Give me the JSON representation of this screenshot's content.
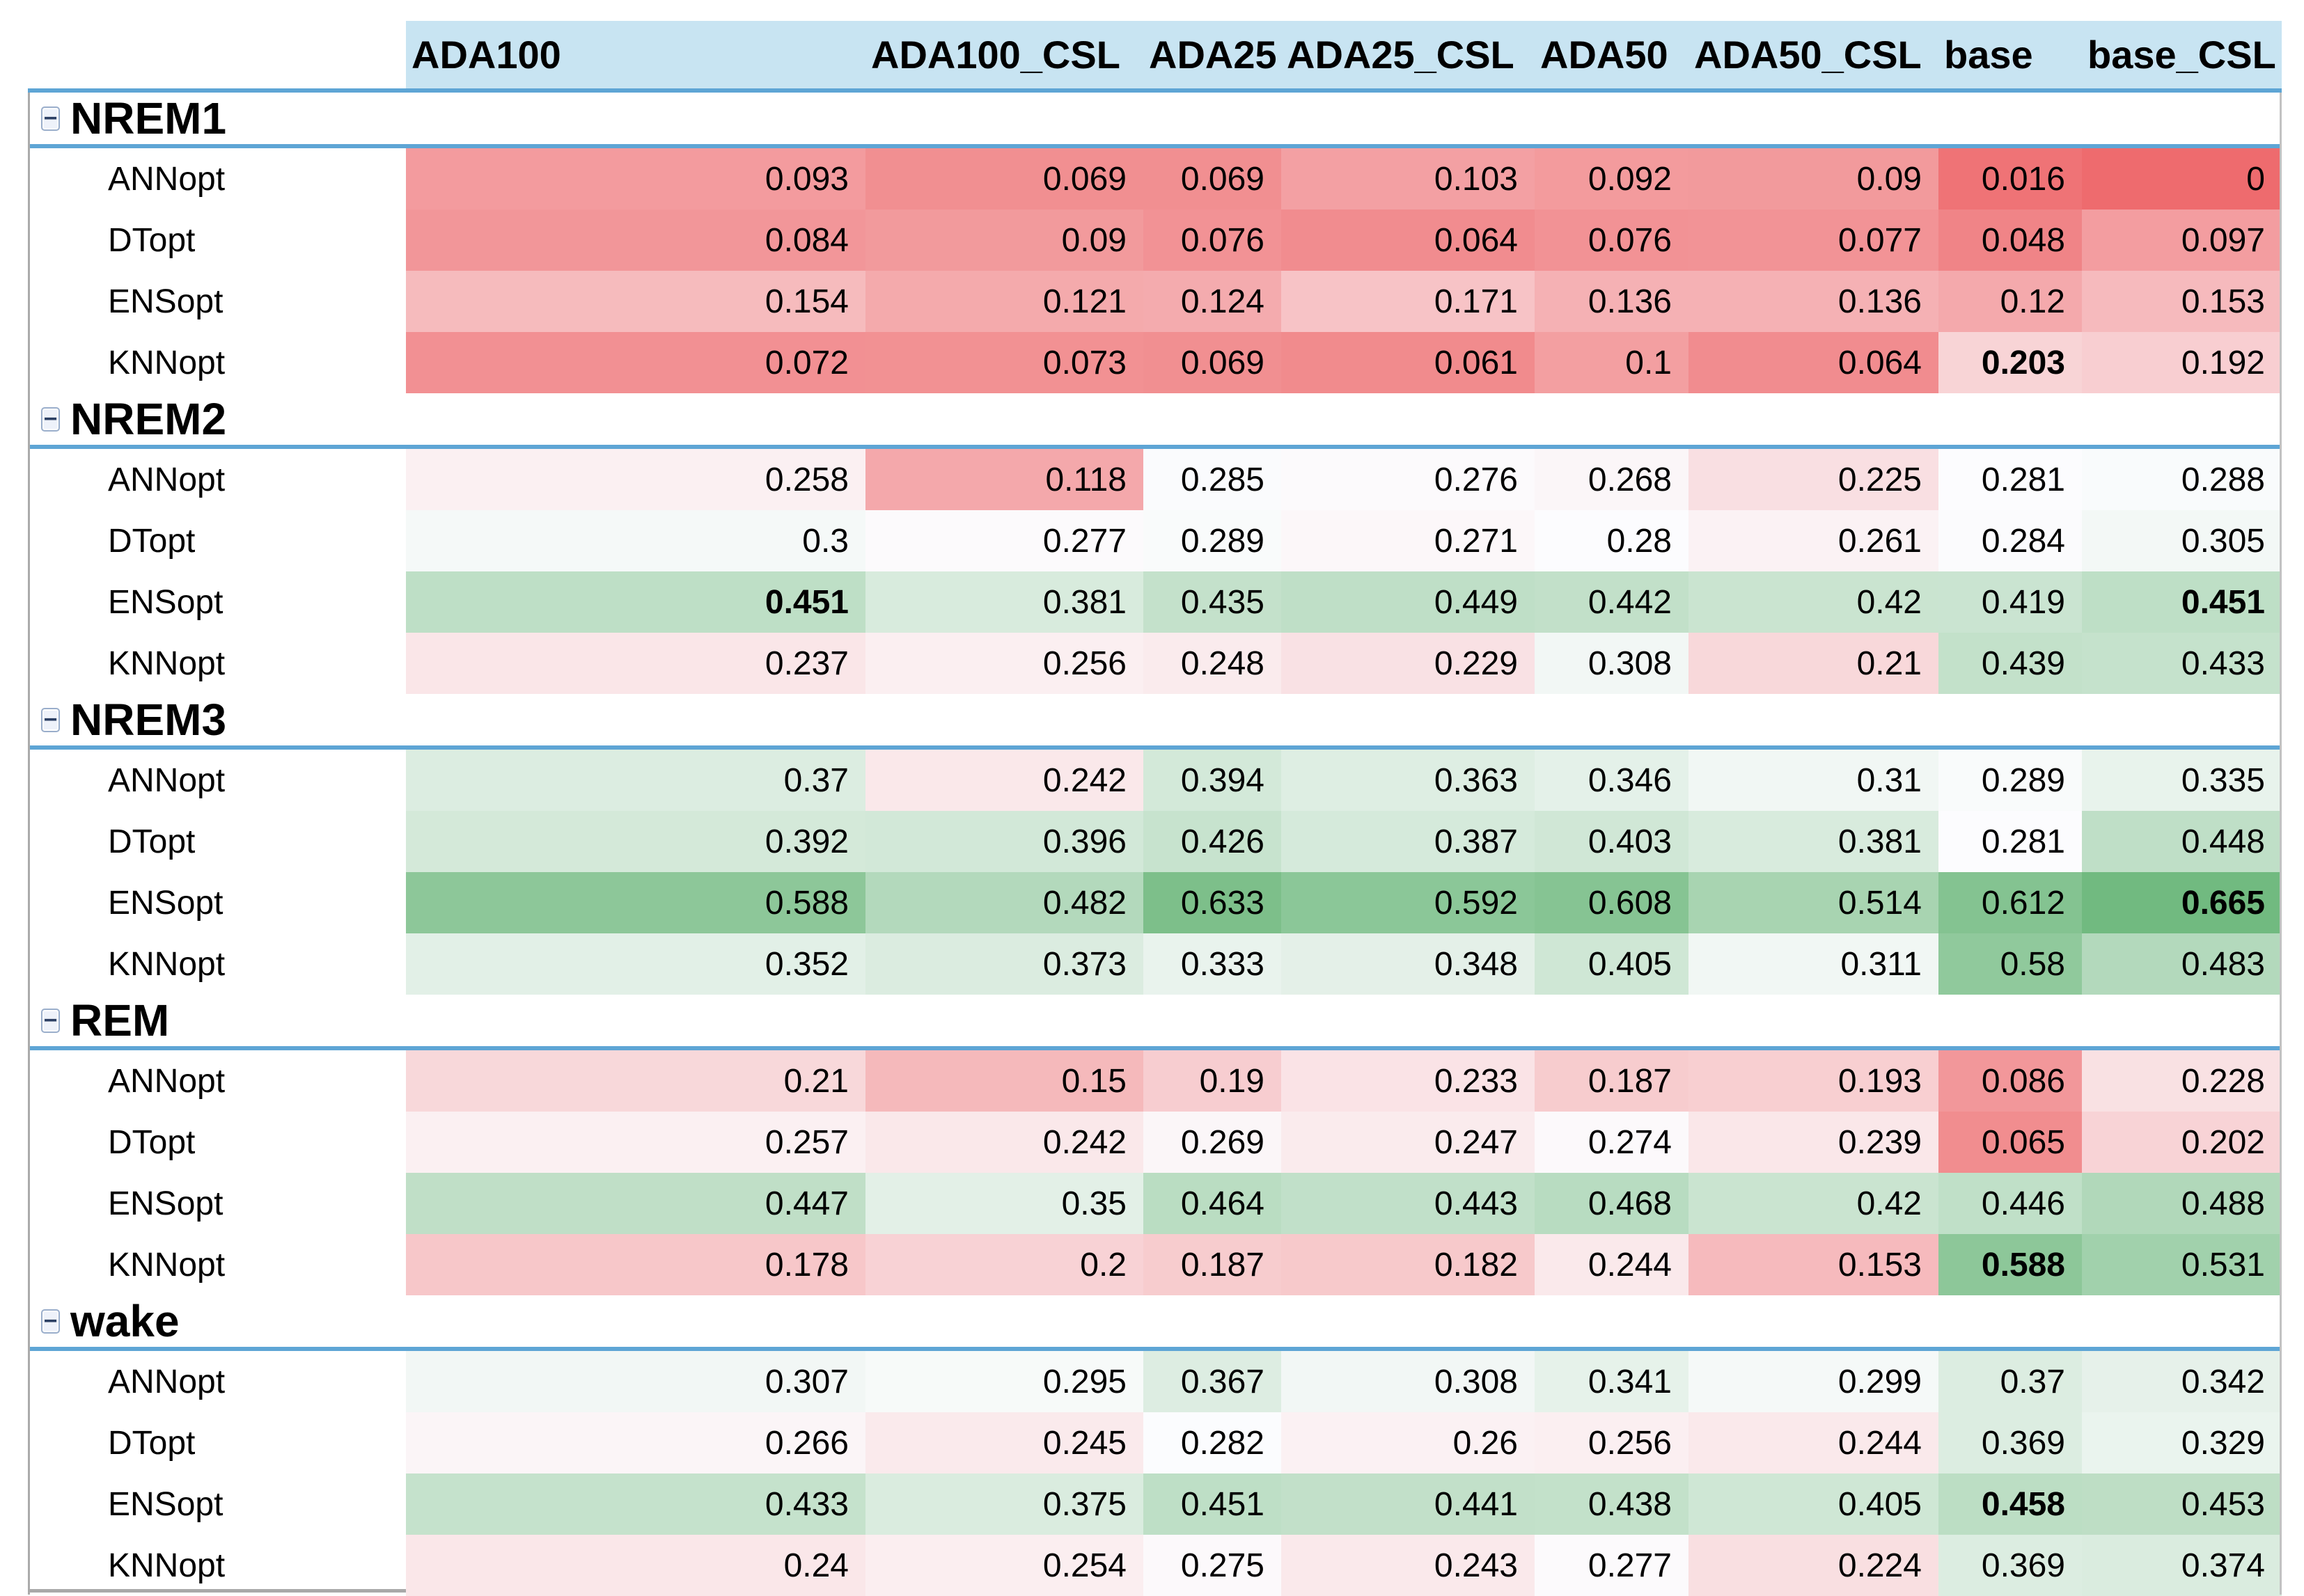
{
  "table": {
    "columns": [
      "ADA100",
      "ADA100_CSL",
      "ADA25",
      "ADA25_CSL",
      "ADA50",
      "ADA50_CSL",
      "base",
      "base_CSL"
    ],
    "groups": [
      {
        "label": "NREM1",
        "rows": [
          {
            "label": "ANNopt",
            "values": [
              "0.093",
              "0.069",
              "0.069",
              "0.103",
              "0.092",
              "0.09",
              "0.016",
              "0"
            ],
            "bold": []
          },
          {
            "label": "DTopt",
            "values": [
              "0.084",
              "0.09",
              "0.076",
              "0.064",
              "0.076",
              "0.077",
              "0.048",
              "0.097"
            ],
            "bold": []
          },
          {
            "label": "ENSopt",
            "values": [
              "0.154",
              "0.121",
              "0.124",
              "0.171",
              "0.136",
              "0.136",
              "0.12",
              "0.153"
            ],
            "bold": []
          },
          {
            "label": "KNNopt",
            "values": [
              "0.072",
              "0.073",
              "0.069",
              "0.061",
              "0.1",
              "0.064",
              "0.203",
              "0.192"
            ],
            "bold": [
              6
            ]
          }
        ]
      },
      {
        "label": "NREM2",
        "rows": [
          {
            "label": "ANNopt",
            "values": [
              "0.258",
              "0.118",
              "0.285",
              "0.276",
              "0.268",
              "0.225",
              "0.281",
              "0.288"
            ],
            "bold": []
          },
          {
            "label": "DTopt",
            "values": [
              "0.3",
              "0.277",
              "0.289",
              "0.271",
              "0.28",
              "0.261",
              "0.284",
              "0.305"
            ],
            "bold": []
          },
          {
            "label": "ENSopt",
            "values": [
              "0.451",
              "0.381",
              "0.435",
              "0.449",
              "0.442",
              "0.42",
              "0.419",
              "0.451"
            ],
            "bold": [
              0,
              7
            ]
          },
          {
            "label": "KNNopt",
            "values": [
              "0.237",
              "0.256",
              "0.248",
              "0.229",
              "0.308",
              "0.21",
              "0.439",
              "0.433"
            ],
            "bold": []
          }
        ]
      },
      {
        "label": "NREM3",
        "rows": [
          {
            "label": "ANNopt",
            "values": [
              "0.37",
              "0.242",
              "0.394",
              "0.363",
              "0.346",
              "0.31",
              "0.289",
              "0.335"
            ],
            "bold": []
          },
          {
            "label": "DTopt",
            "values": [
              "0.392",
              "0.396",
              "0.426",
              "0.387",
              "0.403",
              "0.381",
              "0.281",
              "0.448"
            ],
            "bold": []
          },
          {
            "label": "ENSopt",
            "values": [
              "0.588",
              "0.482",
              "0.633",
              "0.592",
              "0.608",
              "0.514",
              "0.612",
              "0.665"
            ],
            "bold": [
              7
            ]
          },
          {
            "label": "KNNopt",
            "values": [
              "0.352",
              "0.373",
              "0.333",
              "0.348",
              "0.405",
              "0.311",
              "0.58",
              "0.483"
            ],
            "bold": []
          }
        ]
      },
      {
        "label": "REM",
        "rows": [
          {
            "label": "ANNopt",
            "values": [
              "0.21",
              "0.15",
              "0.19",
              "0.233",
              "0.187",
              "0.193",
              "0.086",
              "0.228"
            ],
            "bold": []
          },
          {
            "label": "DTopt",
            "values": [
              "0.257",
              "0.242",
              "0.269",
              "0.247",
              "0.274",
              "0.239",
              "0.065",
              "0.202"
            ],
            "bold": []
          },
          {
            "label": "ENSopt",
            "values": [
              "0.447",
              "0.35",
              "0.464",
              "0.443",
              "0.468",
              "0.42",
              "0.446",
              "0.488"
            ],
            "bold": []
          },
          {
            "label": "KNNopt",
            "values": [
              "0.178",
              "0.2",
              "0.187",
              "0.182",
              "0.244",
              "0.153",
              "0.588",
              "0.531"
            ],
            "bold": [
              6
            ]
          }
        ]
      },
      {
        "label": "wake",
        "rows": [
          {
            "label": "ANNopt",
            "values": [
              "0.307",
              "0.295",
              "0.367",
              "0.308",
              "0.341",
              "0.299",
              "0.37",
              "0.342"
            ],
            "bold": []
          },
          {
            "label": "DTopt",
            "values": [
              "0.266",
              "0.245",
              "0.282",
              "0.26",
              "0.256",
              "0.244",
              "0.369",
              "0.329"
            ],
            "bold": []
          },
          {
            "label": "ENSopt",
            "values": [
              "0.433",
              "0.375",
              "0.451",
              "0.441",
              "0.438",
              "0.405",
              "0.458",
              "0.453"
            ],
            "bold": [
              6
            ]
          },
          {
            "label": "KNNopt",
            "values": [
              "0.24",
              "0.254",
              "0.275",
              "0.243",
              "0.277",
              "0.224",
              "0.369",
              "0.374"
            ],
            "bold": []
          }
        ]
      }
    ]
  },
  "icons": {
    "collapse_glyph": "−"
  },
  "colors": {
    "header_bg": "#C8E4F2",
    "separator_line": "#5EA5D5",
    "left_border": "#ABABAB",
    "right_border": "#C2C2C2",
    "bottom_border": "#A9A9A9",
    "color_scale": {
      "min_value": 0,
      "mid_value": 0.2805,
      "max_value": 0.665,
      "min_color": "#EE6B6E",
      "mid_color": "#FCFCFE",
      "max_color": "#71BA80"
    }
  }
}
